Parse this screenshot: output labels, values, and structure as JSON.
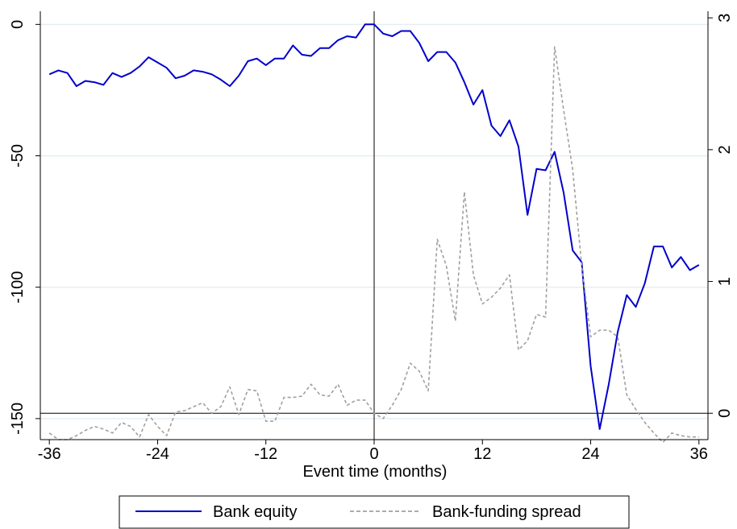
{
  "chart_data": {
    "type": "line",
    "xlabel": "Event time (months)",
    "x_ticks": [
      -36,
      -24,
      -12,
      0,
      12,
      24,
      36
    ],
    "xlim": [
      -37,
      37
    ],
    "left_axis": {
      "ylim": [
        -158,
        5
      ],
      "ticks": [
        0,
        -50,
        -100,
        -150
      ]
    },
    "right_axis": {
      "ylim": [
        -0.2,
        3.05
      ],
      "ticks": [
        0,
        1,
        2,
        3
      ]
    },
    "grid": true,
    "legend_position": "bottom",
    "colors": {
      "equity": "#0000cc",
      "spread": "#a0a0a0",
      "zero_line": "#000000",
      "grid": "#e6eef2"
    },
    "x": [
      -36,
      -35,
      -34,
      -33,
      -32,
      -31,
      -30,
      -29,
      -28,
      -27,
      -26,
      -25,
      -24,
      -23,
      -22,
      -21,
      -20,
      -19,
      -18,
      -17,
      -16,
      -15,
      -14,
      -13,
      -12,
      -11,
      -10,
      -9,
      -8,
      -7,
      -6,
      -5,
      -4,
      -3,
      -2,
      -1,
      0,
      1,
      2,
      3,
      4,
      5,
      6,
      7,
      8,
      9,
      10,
      11,
      12,
      13,
      14,
      15,
      16,
      17,
      18,
      19,
      20,
      21,
      22,
      23,
      24,
      25,
      26,
      27,
      28,
      29,
      30,
      31,
      32,
      33,
      34,
      35,
      36
    ],
    "series": [
      {
        "name": "Bank equity",
        "axis": "left",
        "values": [
          -19,
          -17.5,
          -18.5,
          -23.5,
          -21.5,
          -22,
          -23,
          -18.5,
          -20,
          -18.5,
          -16,
          -12.5,
          -14.5,
          -16.5,
          -20.5,
          -19.5,
          -17.5,
          -18,
          -19,
          -21,
          -23.5,
          -19.5,
          -14,
          -13,
          -15.5,
          -13,
          -13,
          -8,
          -11.5,
          -12,
          -9,
          -9,
          -6,
          -4.5,
          -5,
          0,
          0,
          -3.5,
          -4.5,
          -2.5,
          -2.5,
          -7,
          -14,
          -10.5,
          -10.5,
          -14.5,
          -22,
          -30.5,
          -25,
          -38.5,
          -42.5,
          -36.5,
          -46.5,
          -72.5,
          -55,
          -55.5,
          -48.5,
          -64,
          -86,
          -90.5,
          -130,
          -154,
          -137,
          -117,
          -103,
          -107.5,
          -98.5,
          -84.5,
          -84.5,
          -92.5,
          -88.5,
          -93.5,
          -91.5
        ]
      },
      {
        "name": "Bank-funding spread",
        "axis": "right",
        "values": [
          -0.15,
          -0.2,
          -0.2,
          -0.17,
          -0.13,
          -0.1,
          -0.12,
          -0.15,
          -0.07,
          -0.1,
          -0.18,
          -0.01,
          -0.1,
          -0.17,
          0.01,
          0.02,
          0.05,
          0.08,
          0,
          0.05,
          0.2,
          -0.01,
          0.18,
          0.17,
          -0.06,
          -0.06,
          0.12,
          0.12,
          0.13,
          0.22,
          0.14,
          0.13,
          0.22,
          0.06,
          0.1,
          0.1,
          0,
          -0.04,
          0.06,
          0.18,
          0.38,
          0.32,
          0.17,
          1.32,
          1.12,
          0.7,
          1.68,
          1.05,
          0.83,
          0.88,
          0.95,
          1.05,
          0.48,
          0.55,
          0.75,
          0.73,
          2.78,
          2.3,
          1.85,
          1.12,
          0.58,
          0.63,
          0.63,
          0.58,
          0.14,
          0.03,
          -0.07,
          -0.15,
          -0.22,
          -0.15,
          -0.17,
          -0.18,
          -0.18
        ]
      }
    ]
  }
}
